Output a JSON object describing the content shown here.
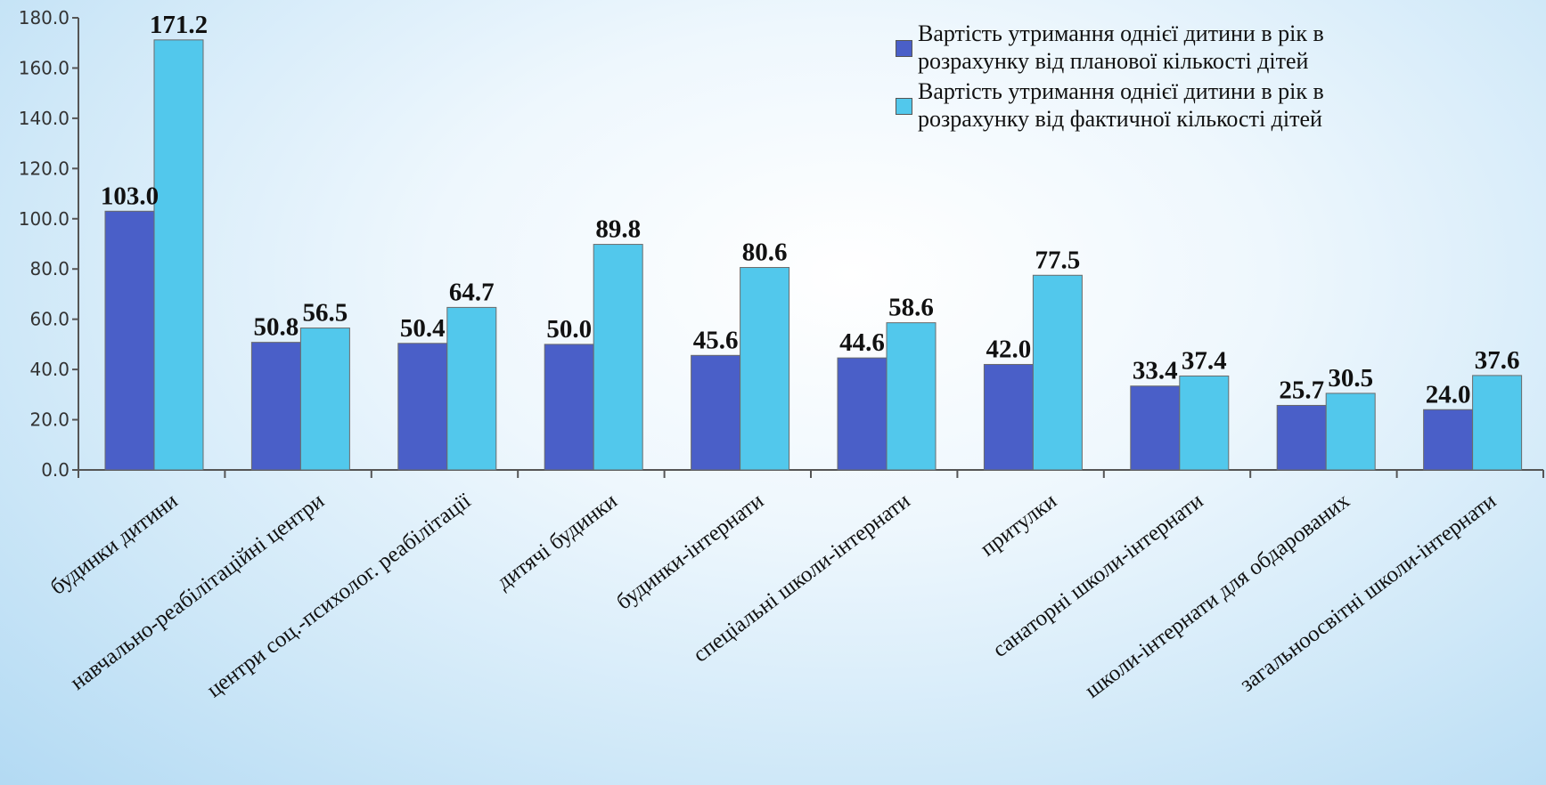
{
  "chart_data": {
    "type": "bar",
    "title": "",
    "xlabel": "",
    "ylabel": "",
    "ylim": [
      0,
      180
    ],
    "yticks": [
      "0.0",
      "20.0",
      "40.0",
      "60.0",
      "80.0",
      "100.0",
      "120.0",
      "140.0",
      "160.0",
      "180.0"
    ],
    "grid": false,
    "legend_position": "top-right",
    "categories": [
      "будинки дитини",
      "навчально-реабілітаційні центри",
      "центри соц.-психолог. реабілітації",
      "дитячі будинки",
      "будинки-інтернати",
      "спеціальні школи-інтернати",
      "притулки",
      "санаторні школи-інтернати",
      "школи-інтернати для обдарованих",
      "загальноосвітні школи-інтернати"
    ],
    "series": [
      {
        "name": "Вартість утримання однієї дитини в рік в розрахунку від планової кількості дітей",
        "color": "#4a5fc8",
        "values": [
          103.0,
          50.8,
          50.4,
          50.0,
          45.6,
          44.6,
          42.0,
          33.4,
          25.7,
          24.0
        ],
        "labels": [
          "103.0",
          "50.8",
          "50.4",
          "50.0",
          "45.6",
          "44.6",
          "42.0",
          "33.4",
          "25.7",
          "24.0"
        ]
      },
      {
        "name": "Вартість утримання однієї дитини в рік в розрахунку від фактичної кількості дітей",
        "color": "#52c8ec",
        "values": [
          171.2,
          56.5,
          64.7,
          89.8,
          80.6,
          58.6,
          77.5,
          37.4,
          30.5,
          37.6
        ],
        "labels": [
          "171.2",
          "56.5",
          "64.7",
          "89.8",
          "80.6",
          "58.6",
          "77.5",
          "37.4",
          "30.5",
          "37.6"
        ]
      }
    ]
  }
}
